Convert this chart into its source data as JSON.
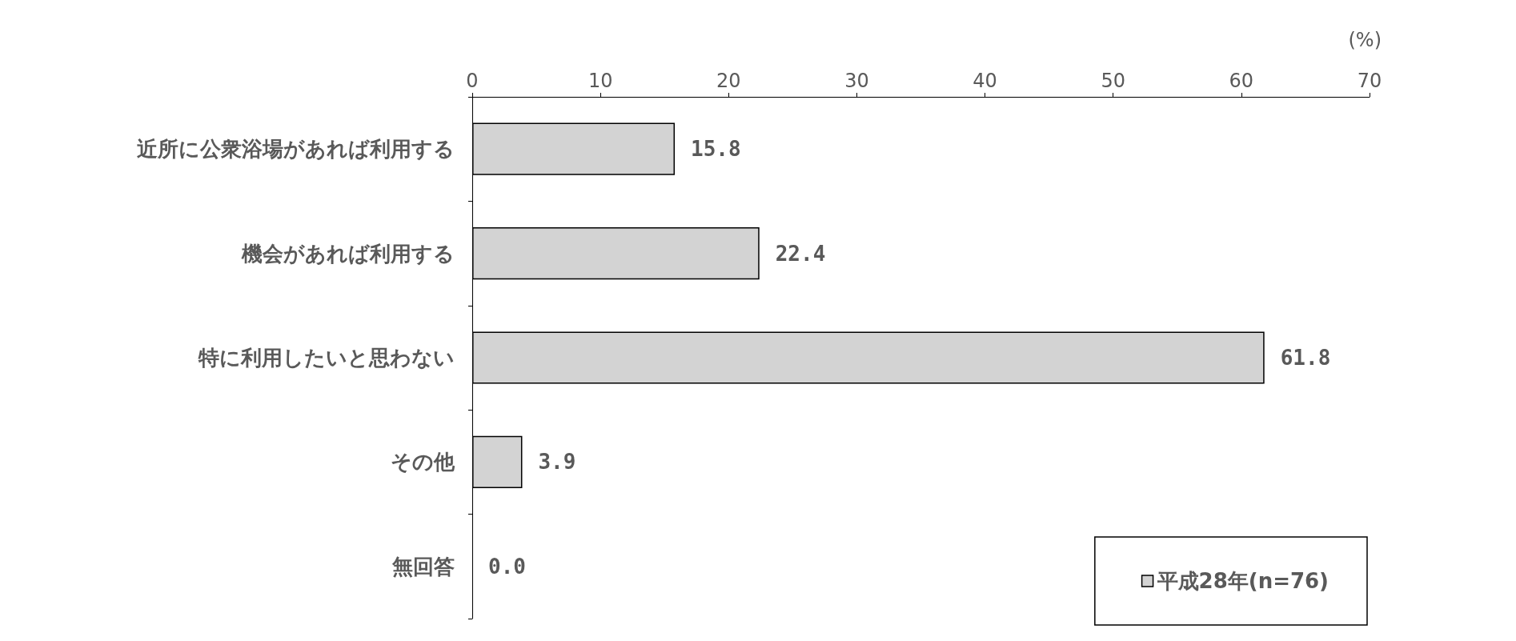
{
  "chart_data": {
    "type": "bar",
    "orientation": "horizontal",
    "xlabel": "(%)",
    "categories": [
      "近所に公衆浴場があれば利用する",
      "機会があれば利用する",
      "特に利用したいと思わない",
      "その他",
      "無回答"
    ],
    "series": [
      {
        "name": "平成28年(n=76)",
        "color": "#d3d3d3",
        "values": [
          15.8,
          22.4,
          61.8,
          3.9,
          0.0
        ],
        "value_labels": [
          "15.8",
          "22.4",
          "61.8",
          "3.9",
          "0.0"
        ]
      }
    ],
    "xlim": [
      0,
      70
    ],
    "xticks": [
      0,
      10,
      20,
      30,
      40,
      50,
      60,
      70
    ],
    "grid": false,
    "legend": "bottom right"
  }
}
